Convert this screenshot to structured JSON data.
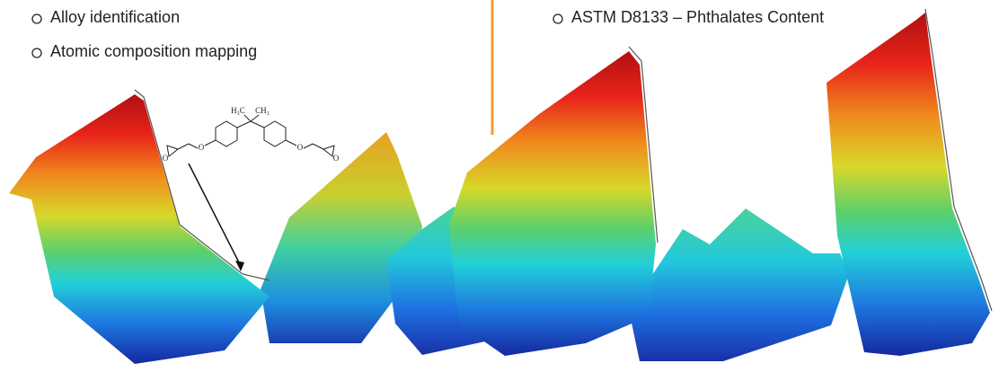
{
  "left_bullets": [
    "Alloy identification",
    "Atomic composition mapping"
  ],
  "right_bullets": [
    "ASTM D8133 – Phthalates Content"
  ],
  "structure": {
    "labels": [
      "H₃C",
      "CH₃",
      "O",
      "O",
      "O",
      "O"
    ]
  }
}
